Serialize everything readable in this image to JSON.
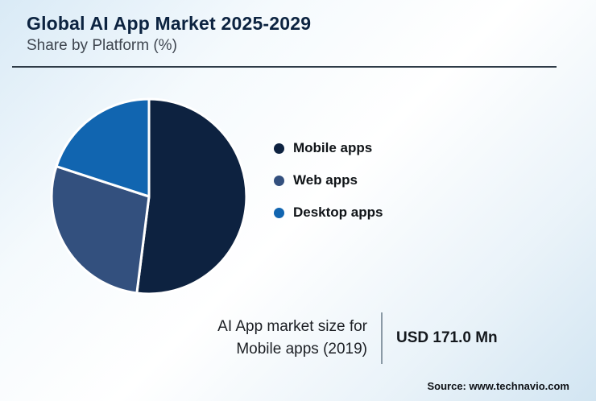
{
  "header": {
    "title": "Global AI App Market 2025-2029",
    "subtitle": "Share by Platform (%)"
  },
  "chart_data": {
    "type": "pie",
    "title": "Share by Platform (%)",
    "series": [
      {
        "name": "Mobile apps",
        "value": 52,
        "color": "#0d2240"
      },
      {
        "name": "Web apps",
        "value": 28,
        "color": "#33507e"
      },
      {
        "name": "Desktop apps",
        "value": 20,
        "color": "#1165b0"
      }
    ],
    "legend_position": "right",
    "start_angle_deg": -90,
    "direction": "clockwise",
    "slice_border_color": "#ffffff"
  },
  "footnote": {
    "label_line1": "AI App market size for",
    "label_line2": "Mobile apps (2019)",
    "value": "USD 171.0 Mn"
  },
  "source": "Source: www.technavio.com"
}
